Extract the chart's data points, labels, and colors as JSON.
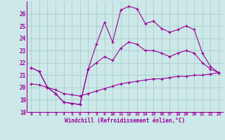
{
  "xlabel": "Windchill (Refroidissement éolien,°C)",
  "x_hours": [
    0,
    1,
    2,
    3,
    4,
    5,
    6,
    7,
    8,
    9,
    10,
    11,
    12,
    13,
    14,
    15,
    16,
    17,
    18,
    19,
    20,
    21,
    22,
    23
  ],
  "line_top": [
    21.6,
    21.3,
    20.0,
    19.5,
    18.8,
    18.7,
    18.6,
    21.5,
    23.5,
    25.3,
    23.7,
    26.3,
    26.6,
    26.4,
    25.2,
    25.4,
    24.8,
    24.5,
    24.7,
    25.0,
    24.7,
    22.8,
    21.7,
    21.2
  ],
  "line_mid": [
    21.6,
    21.3,
    20.0,
    19.5,
    18.8,
    18.7,
    18.6,
    21.5,
    22.0,
    22.5,
    22.2,
    23.2,
    23.7,
    23.5,
    23.0,
    23.0,
    22.8,
    22.5,
    22.8,
    23.0,
    22.8,
    22.0,
    21.5,
    21.2
  ],
  "line_bot": [
    20.3,
    20.2,
    20.0,
    19.8,
    19.5,
    19.4,
    19.3,
    19.5,
    19.7,
    19.9,
    20.1,
    20.3,
    20.4,
    20.5,
    20.6,
    20.7,
    20.7,
    20.8,
    20.9,
    20.9,
    21.0,
    21.0,
    21.1,
    21.2
  ],
  "ylim": [
    18,
    27
  ],
  "yticks": [
    18,
    19,
    20,
    21,
    22,
    23,
    24,
    25,
    26
  ],
  "line_color": "#990099",
  "bg_color": "#cce8e8",
  "grid_color": "#aacccc"
}
